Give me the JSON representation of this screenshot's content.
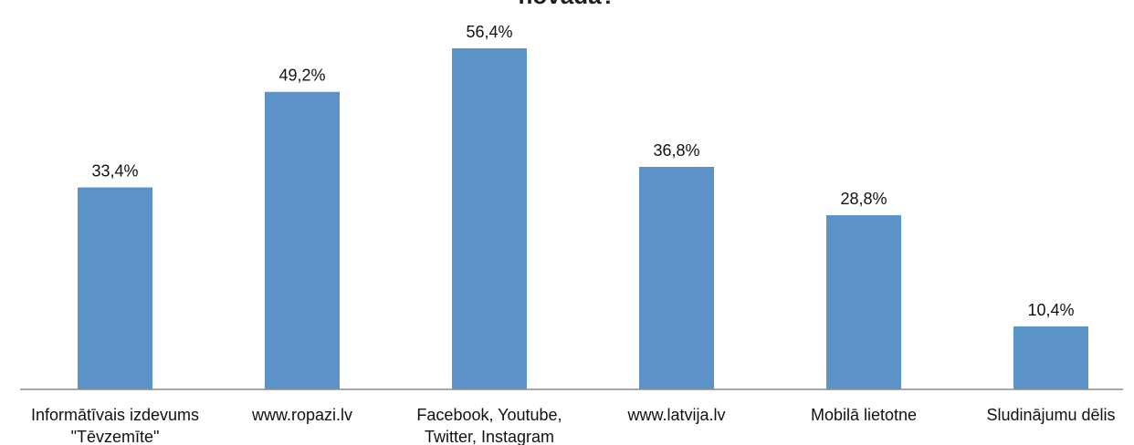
{
  "chart_data": {
    "type": "bar",
    "title": "novadā?",
    "xlabel": "",
    "ylabel": "",
    "ylim": [
      0,
      60
    ],
    "grid": false,
    "legend": "none",
    "categories": [
      "Informātīvais izdevums \"Tēvzemīte\"",
      "www.ropazi.lv",
      "Facebook, Youtube, Twitter, Instagram",
      "www.latvija.lv",
      "Mobilā lietotne",
      "Sludinājumu dēlis"
    ],
    "category_lines": [
      [
        "Informātīvais izdevums",
        "\"Tēvzemīte\""
      ],
      [
        "www.ropazi.lv"
      ],
      [
        "Facebook, Youtube,",
        "Twitter, Instagram"
      ],
      [
        "www.latvija.lv"
      ],
      [
        "Mobilā lietotne"
      ],
      [
        "Sludinājumu dēlis"
      ]
    ],
    "values": [
      33.4,
      49.2,
      56.4,
      36.8,
      28.8,
      10.4
    ],
    "value_labels": [
      "33,4%",
      "49,2%",
      "56,4%",
      "36,8%",
      "28,8%",
      "10,4%"
    ],
    "bar_color": "#5b93c9",
    "axis_color": "#8c8c8c"
  }
}
